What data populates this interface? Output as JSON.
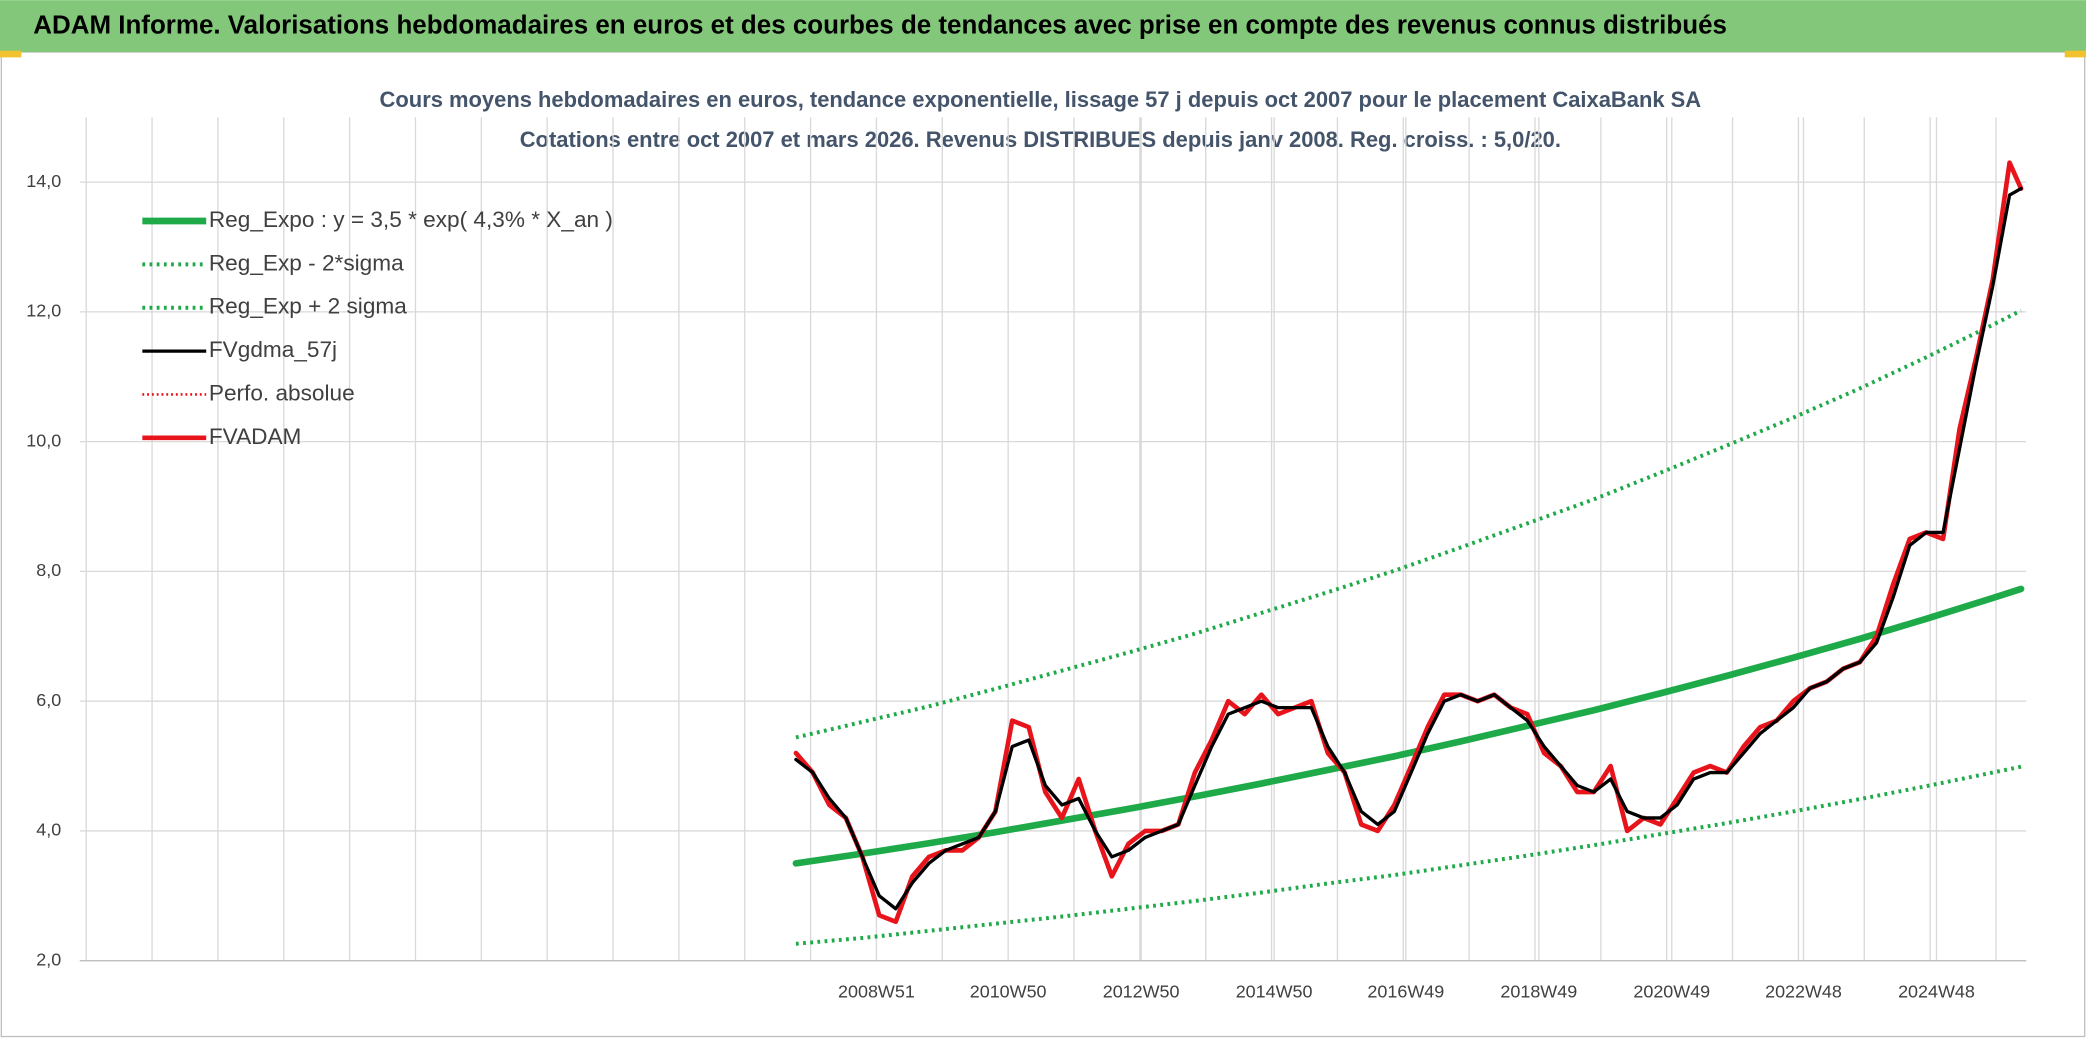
{
  "header": {
    "title": "ADAM Informe. Valorisations hebdomadaires en euros et des courbes de tendances avec prise en compte des revenus connus distribués"
  },
  "chart_data": {
    "type": "line",
    "title": "Cours moyens hebdomadaires en euros, tendance exponentielle, lissage 57 j depuis oct 2007 pour le placement CaixaBank SA",
    "subtitle": "Cotations entre oct 2007 et mars 2026. Revenus DISTRIBUES depuis janv 2008. Reg. croiss. : 5,0/20.",
    "legend": "upper left",
    "grid": true,
    "xlim": [
      "1996W52",
      "2026W14"
    ],
    "xticks": [
      "2008W51",
      "2010W50",
      "2012W50",
      "2014W50",
      "2016W49",
      "2018W49",
      "2020W49",
      "2022W48",
      "2024W48"
    ],
    "ylim": [
      2,
      15
    ],
    "yticks": [
      {
        "value": 2,
        "label": "2,0"
      },
      {
        "value": 4,
        "label": "4,0"
      },
      {
        "value": 6,
        "label": "6,0"
      },
      {
        "value": 8,
        "label": "8,0"
      },
      {
        "value": 10,
        "label": "10,0"
      },
      {
        "value": 12,
        "label": "12,0"
      },
      {
        "value": 14,
        "label": "14,0"
      }
    ],
    "x": [
      "2007W40",
      "2008W01",
      "2008W14",
      "2008W27",
      "2008W40",
      "2009W01",
      "2009W14",
      "2009W27",
      "2009W40",
      "2010W01",
      "2010W14",
      "2010W27",
      "2010W40",
      "2011W01",
      "2011W14",
      "2011W27",
      "2011W40",
      "2012W01",
      "2012W14",
      "2012W27",
      "2012W40",
      "2013W01",
      "2013W14",
      "2013W27",
      "2013W40",
      "2014W01",
      "2014W14",
      "2014W27",
      "2014W40",
      "2015W01",
      "2015W14",
      "2015W27",
      "2015W40",
      "2016W01",
      "2016W14",
      "2016W27",
      "2016W40",
      "2017W01",
      "2017W14",
      "2017W27",
      "2017W40",
      "2018W01",
      "2018W14",
      "2018W27",
      "2018W40",
      "2019W01",
      "2019W14",
      "2019W27",
      "2019W40",
      "2020W01",
      "2020W14",
      "2020W27",
      "2020W40",
      "2021W01",
      "2021W14",
      "2021W27",
      "2021W40",
      "2022W01",
      "2022W14",
      "2022W27",
      "2022W40",
      "2023W01",
      "2023W14",
      "2023W27",
      "2023W40",
      "2024W01",
      "2024W14",
      "2024W27",
      "2024W40",
      "2025W01",
      "2025W14",
      "2025W27",
      "2025W40",
      "2026W01",
      "2026W10"
    ],
    "series": [
      {
        "name": "Reg_Expo : y = 3,5 * exp( 4,3% *  X_an )",
        "color": "#1faa4a",
        "dash": "solid",
        "linewidth": 5,
        "x": [
          "2007W40",
          "2008W40",
          "2009W40",
          "2010W40",
          "2011W40",
          "2012W40",
          "2013W40",
          "2014W40",
          "2015W40",
          "2016W40",
          "2017W40",
          "2018W40",
          "2019W40",
          "2020W40",
          "2021W40",
          "2022W40",
          "2023W40",
          "2024W40",
          "2025W40",
          "2026W10"
        ],
        "values": [
          3.5,
          3.65,
          3.81,
          3.98,
          4.16,
          4.34,
          4.53,
          4.73,
          4.94,
          5.15,
          5.38,
          5.62,
          5.86,
          6.12,
          6.39,
          6.67,
          6.96,
          7.27,
          7.59,
          7.73
        ]
      },
      {
        "name": "Reg_Exp - 2*sigma",
        "color": "#1faa4a",
        "dash": "dotted",
        "linewidth": 3,
        "x": [
          "2007W40",
          "2008W40",
          "2009W40",
          "2010W40",
          "2011W40",
          "2012W40",
          "2013W40",
          "2014W40",
          "2015W40",
          "2016W40",
          "2017W40",
          "2018W40",
          "2019W40",
          "2020W40",
          "2021W40",
          "2022W40",
          "2023W40",
          "2024W40",
          "2025W40",
          "2026W10"
        ],
        "values": [
          2.26,
          2.35,
          2.46,
          2.57,
          2.68,
          2.8,
          2.92,
          3.05,
          3.19,
          3.32,
          3.47,
          3.62,
          3.78,
          3.95,
          4.12,
          4.3,
          4.49,
          4.69,
          4.9,
          4.99
        ]
      },
      {
        "name": "Reg_Exp + 2 sigma",
        "color": "#1faa4a",
        "dash": "dotted",
        "linewidth": 3,
        "x": [
          "2007W40",
          "2008W40",
          "2009W40",
          "2010W40",
          "2011W40",
          "2012W40",
          "2013W40",
          "2014W40",
          "2015W40",
          "2016W40",
          "2017W40",
          "2018W40",
          "2019W40",
          "2020W40",
          "2021W40",
          "2022W40",
          "2023W40",
          "2024W40",
          "2025W40",
          "2026W10"
        ],
        "values": [
          5.44,
          5.68,
          5.92,
          6.19,
          6.47,
          6.75,
          7.04,
          7.36,
          7.68,
          8.01,
          8.37,
          8.74,
          9.11,
          9.52,
          9.94,
          10.37,
          10.82,
          11.3,
          11.8,
          12.02
        ]
      },
      {
        "name": "FVgdma_57j",
        "color": "#000000",
        "dash": "solid",
        "linewidth": 2.5,
        "values": [
          5.1,
          4.9,
          4.5,
          4.2,
          3.6,
          3.0,
          2.8,
          3.2,
          3.5,
          3.7,
          3.8,
          3.9,
          4.3,
          5.3,
          5.4,
          4.7,
          4.4,
          4.5,
          4.0,
          3.6,
          3.7,
          3.9,
          4.0,
          4.1,
          4.7,
          5.3,
          5.8,
          5.9,
          6.0,
          5.9,
          5.9,
          5.9,
          5.3,
          4.9,
          4.3,
          4.1,
          4.3,
          4.9,
          5.5,
          6.0,
          6.1,
          6.0,
          6.1,
          5.9,
          5.7,
          5.3,
          5.0,
          4.7,
          4.6,
          4.8,
          4.3,
          4.2,
          4.2,
          4.4,
          4.8,
          4.9,
          4.9,
          5.2,
          5.5,
          5.7,
          5.9,
          6.2,
          6.3,
          6.5,
          6.6,
          6.9,
          7.6,
          8.4,
          8.6,
          8.6,
          9.9,
          11.2,
          12.4,
          13.8,
          13.9
        ]
      },
      {
        "name": "Perfo. absolue",
        "color": "#e8141b",
        "dash": "dotted",
        "linewidth": 2
      },
      {
        "name": "FVADAM",
        "color": "#e8141b",
        "dash": "solid",
        "linewidth": 3.5,
        "values": [
          5.2,
          4.9,
          4.4,
          4.2,
          3.6,
          2.7,
          2.6,
          3.3,
          3.6,
          3.7,
          3.7,
          3.9,
          4.3,
          5.7,
          5.6,
          4.6,
          4.2,
          4.8,
          4.0,
          3.3,
          3.8,
          4.0,
          4.0,
          4.1,
          4.9,
          5.4,
          6.0,
          5.8,
          6.1,
          5.8,
          5.9,
          6.0,
          5.2,
          4.9,
          4.1,
          4.0,
          4.4,
          5.0,
          5.6,
          6.1,
          6.1,
          6.0,
          6.1,
          5.9,
          5.8,
          5.2,
          5.0,
          4.6,
          4.6,
          5.0,
          4.0,
          4.2,
          4.1,
          4.5,
          4.9,
          5.0,
          4.9,
          5.3,
          5.6,
          5.7,
          6.0,
          6.2,
          6.3,
          6.5,
          6.6,
          7.0,
          7.8,
          8.5,
          8.6,
          8.5,
          10.2,
          11.3,
          12.5,
          14.3,
          13.9
        ]
      }
    ]
  }
}
